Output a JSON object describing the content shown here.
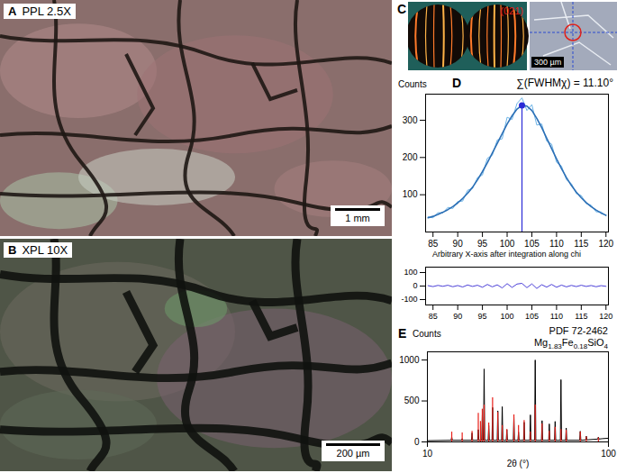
{
  "panels": [
    {
      "letter": "A",
      "title": "PPL 2.5X",
      "scale_bar": "1 mm"
    },
    {
      "letter": "B",
      "title": "XPL 10X",
      "scale_bar": "200 µm"
    },
    {
      "letter": "C",
      "label": "(021)",
      "scale_bar": "300 µm"
    }
  ],
  "chart_data": [
    {
      "panel": "D",
      "type": "line",
      "y_label": "Counts",
      "x_label": "Arbitrary X-axis after integration along chi",
      "annotation": "∑(FWHMχ) = 11.10°",
      "x": [
        84,
        85,
        86,
        87,
        88,
        89,
        90,
        91,
        92,
        93,
        94,
        95,
        96,
        97,
        98,
        99,
        100,
        101,
        102,
        103,
        104,
        105,
        106,
        107,
        108,
        109,
        110,
        111,
        112,
        113,
        114,
        115,
        116,
        117,
        118,
        119,
        120
      ],
      "series": [
        {
          "color": "#6cb4e8",
          "values": [
            41,
            38,
            52,
            51,
            66,
            63,
            82,
            83,
            112,
            117,
            146,
            153,
            198,
            206,
            247,
            250,
            308,
            302,
            345,
            360,
            326,
            342,
            287,
            290,
            244,
            236,
            187,
            177,
            140,
            130,
            103,
            98,
            76,
            72,
            54,
            54,
            43
          ]
        },
        {
          "color": "#2c6fb5",
          "values": [
            38,
            42,
            47,
            53,
            60,
            68,
            78,
            90,
            104,
            120,
            140,
            162,
            186,
            212,
            238,
            264,
            290,
            312,
            330,
            340,
            338,
            326,
            305,
            280,
            252,
            224,
            196,
            170,
            146,
            125,
            107,
            92,
            79,
            68,
            59,
            51,
            45
          ]
        }
      ],
      "peak": {
        "x": 103,
        "y": 340,
        "color": "#2b2bd6"
      },
      "xlim": [
        83.5,
        120.5
      ],
      "xticks": [
        85,
        90,
        95,
        100,
        105,
        110,
        115,
        120
      ],
      "ylim": [
        0,
        370
      ],
      "yticks": [
        100,
        200,
        300
      ]
    },
    {
      "type": "line",
      "x": [
        84,
        85,
        86,
        87,
        88,
        89,
        90,
        91,
        92,
        93,
        94,
        95,
        96,
        97,
        98,
        99,
        100,
        101,
        102,
        103,
        104,
        105,
        106,
        107,
        108,
        109,
        110,
        111,
        112,
        113,
        114,
        115,
        116,
        117,
        118,
        119,
        120
      ],
      "values": [
        3,
        -4,
        5,
        -2,
        6,
        -5,
        4,
        -7,
        8,
        -3,
        6,
        -9,
        12,
        -6,
        9,
        -14,
        18,
        -10,
        15,
        20,
        -12,
        16,
        -18,
        10,
        -8,
        12,
        -9,
        7,
        -6,
        5,
        -4,
        6,
        -3,
        4,
        -5,
        3,
        -2
      ],
      "color": "#4b3fd8",
      "xlim": [
        83.5,
        120.5
      ],
      "xticks": [
        85,
        90,
        95,
        100,
        105,
        110,
        115,
        120
      ],
      "ylim": [
        -140,
        140
      ],
      "yticks": [
        -100,
        0,
        100
      ]
    },
    {
      "panel": "E",
      "type": "line",
      "y_label": "Counts",
      "x_label": "2θ (°)",
      "annotations": [
        "PDF 72-2462",
        "Mg1.83Fe0.18SiO4"
      ],
      "series": [
        {
          "type": "line",
          "color": "#000000",
          "x": [
            10,
            21.8,
            22.1,
            22.4,
            27,
            27.3,
            27.6,
            31.9,
            32.2,
            32.5,
            35,
            35.3,
            35.6,
            37,
            37.3,
            37.6,
            37.9,
            38.2,
            38.5,
            40.2,
            40.5,
            40.8,
            42.1,
            42.4,
            42.7,
            44.7,
            45,
            45.3,
            46.9,
            47.2,
            47.5,
            49.2,
            49.5,
            49.8,
            52.7,
            53,
            53.3,
            55,
            55.3,
            55.6,
            57.8,
            58.1,
            58.4,
            60.9,
            61.2,
            61.5,
            63.3,
            63.6,
            63.9,
            66.7,
            67,
            67.3,
            70.3,
            70.6,
            70.9,
            73.2,
            73.5,
            73.8,
            76.1,
            76.4,
            76.7,
            78.7,
            79,
            79.3,
            85.7,
            86,
            86.3,
            88.7,
            89,
            89.3,
            94.7,
            95,
            95.3,
            97,
            100
          ],
          "values": [
            15,
            20,
            60,
            20,
            20,
            40,
            20,
            20,
            110,
            20,
            20,
            150,
            20,
            20,
            330,
            20,
            20,
            890,
            20,
            20,
            200,
            20,
            20,
            420,
            20,
            20,
            380,
            20,
            20,
            430,
            20,
            20,
            150,
            20,
            20,
            300,
            20,
            20,
            120,
            20,
            20,
            240,
            20,
            20,
            330,
            20,
            20,
            1000,
            20,
            20,
            260,
            20,
            20,
            220,
            20,
            20,
            250,
            20,
            20,
            760,
            20,
            20,
            170,
            20,
            20,
            130,
            20,
            25,
            70,
            25,
            35,
            60,
            35,
            40,
            45
          ]
        },
        {
          "type": "stick",
          "color": "#e8201a",
          "x": [
            22.1,
            27.3,
            32.2,
            35.3,
            36.4,
            37.3,
            38.2,
            40.5,
            42.4,
            45,
            47.2,
            49.5,
            53,
            55.3,
            58.1,
            61.2,
            63.6,
            67,
            70.6,
            73.5,
            76.4,
            79,
            86,
            89,
            95
          ],
          "values": [
            120,
            110,
            130,
            350,
            250,
            400,
            450,
            230,
            540,
            360,
            200,
            150,
            330,
            200,
            260,
            120,
            450,
            220,
            130,
            180,
            150,
            140,
            120,
            60,
            50
          ]
        }
      ],
      "xlim": [
        10,
        100
      ],
      "xticks": [
        10,
        100
      ],
      "ylim": [
        0,
        1100
      ],
      "yticks": [
        0,
        500,
        1000
      ]
    }
  ]
}
